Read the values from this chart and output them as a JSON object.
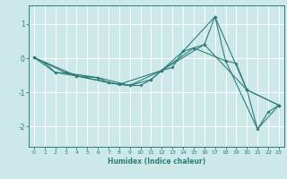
{
  "xlabel": "Humidex (Indice chaleur)",
  "bg_color": "#cce8e8",
  "grid_color": "#ffffff",
  "line_color": "#2e7d7a",
  "xlim": [
    -0.5,
    23.5
  ],
  "ylim": [
    -2.6,
    1.55
  ],
  "yticks": [
    -2,
    -1,
    0,
    1
  ],
  "xticks": [
    0,
    1,
    2,
    3,
    4,
    5,
    6,
    7,
    8,
    9,
    10,
    11,
    12,
    13,
    14,
    15,
    16,
    17,
    18,
    19,
    20,
    21,
    22,
    23
  ],
  "series1": [
    [
      0,
      0.02
    ],
    [
      1,
      -0.13
    ],
    [
      2,
      -0.42
    ],
    [
      3,
      -0.43
    ],
    [
      4,
      -0.52
    ],
    [
      5,
      -0.55
    ],
    [
      6,
      -0.57
    ],
    [
      7,
      -0.72
    ],
    [
      8,
      -0.77
    ],
    [
      9,
      -0.8
    ],
    [
      10,
      -0.8
    ],
    [
      11,
      -0.63
    ],
    [
      12,
      -0.36
    ],
    [
      13,
      -0.27
    ],
    [
      14,
      0.2
    ],
    [
      15,
      0.3
    ],
    [
      16,
      0.4
    ],
    [
      17,
      1.22
    ],
    [
      18,
      -0.08
    ],
    [
      19,
      -0.15
    ],
    [
      20,
      -0.93
    ],
    [
      21,
      -2.08
    ],
    [
      22,
      -1.58
    ],
    [
      23,
      -1.38
    ]
  ],
  "series2": [
    [
      0,
      0.02
    ],
    [
      3,
      -0.43
    ],
    [
      6,
      -0.57
    ],
    [
      9,
      -0.8
    ],
    [
      12,
      -0.36
    ],
    [
      15,
      0.3
    ],
    [
      18,
      -0.08
    ],
    [
      21,
      -2.08
    ],
    [
      23,
      -1.38
    ]
  ],
  "series3": [
    [
      0,
      0.02
    ],
    [
      4,
      -0.52
    ],
    [
      8,
      -0.77
    ],
    [
      12,
      -0.36
    ],
    [
      16,
      0.4
    ],
    [
      20,
      -0.93
    ],
    [
      23,
      -1.38
    ]
  ],
  "series4": [
    [
      0,
      0.02
    ],
    [
      2,
      -0.42
    ],
    [
      4,
      -0.52
    ],
    [
      7,
      -0.72
    ],
    [
      9,
      -0.8
    ],
    [
      11,
      -0.63
    ],
    [
      14,
      0.2
    ],
    [
      17,
      1.22
    ],
    [
      20,
      -0.93
    ],
    [
      23,
      -1.38
    ]
  ]
}
